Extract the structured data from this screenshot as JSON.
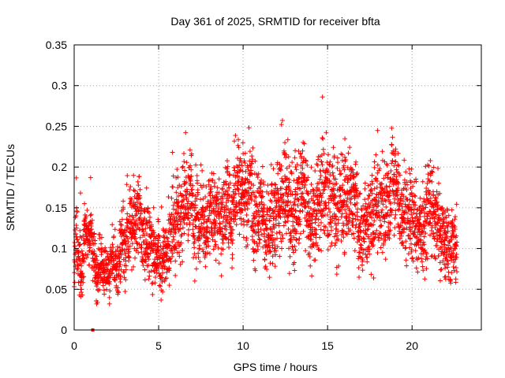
{
  "chart_data": {
    "type": "scatter",
    "title": "Day 361 of 2025, SRMTID for receiver bfta",
    "xlabel": "GPS time / hours",
    "ylabel": "SRMTID / TECUs",
    "xlim": [
      0,
      24.1
    ],
    "ylim": [
      0,
      0.35
    ],
    "x_ticks": [
      0,
      5,
      10,
      15,
      20
    ],
    "x_tick_labels": [
      "0",
      "5",
      "10",
      "15",
      "20"
    ],
    "y_ticks": [
      0,
      0.05,
      0.1,
      0.15,
      0.2,
      0.25,
      0.3,
      0.35
    ],
    "y_tick_labels": [
      "0",
      "0.05",
      "0.1",
      "0.15",
      "0.2",
      "0.25",
      "0.3",
      "0.35"
    ],
    "grid": true,
    "marker": "plus",
    "color": "#ff0000",
    "outlier_points": [
      {
        "x": 1.1,
        "y": 0.0
      }
    ],
    "envelope": {
      "x": [
        0.0,
        0.1,
        0.25,
        0.5,
        1.0,
        1.5,
        2.0,
        2.5,
        3.0,
        3.5,
        4.0,
        4.5,
        5.0,
        5.5,
        6.0,
        6.5,
        7.0,
        7.5,
        8.0,
        8.5,
        9.0,
        9.5,
        10.0,
        10.5,
        11.0,
        11.5,
        12.0,
        12.5,
        13.0,
        13.5,
        14.0,
        14.5,
        15.0,
        15.5,
        16.0,
        16.5,
        17.0,
        17.5,
        18.0,
        18.5,
        19.0,
        19.5,
        20.0,
        20.5,
        21.0,
        21.5,
        22.0,
        22.5
      ],
      "center": [
        0.09,
        0.13,
        0.12,
        0.1,
        0.085,
        0.075,
        0.07,
        0.08,
        0.105,
        0.12,
        0.115,
        0.1,
        0.09,
        0.1,
        0.11,
        0.155,
        0.14,
        0.12,
        0.13,
        0.12,
        0.14,
        0.14,
        0.15,
        0.155,
        0.14,
        0.12,
        0.14,
        0.175,
        0.17,
        0.15,
        0.15,
        0.15,
        0.155,
        0.16,
        0.165,
        0.165,
        0.12,
        0.13,
        0.16,
        0.17,
        0.17,
        0.16,
        0.14,
        0.12,
        0.15,
        0.13,
        0.12,
        0.095
      ],
      "spread": [
        0.03,
        0.05,
        0.04,
        0.035,
        0.03,
        0.03,
        0.025,
        0.03,
        0.04,
        0.04,
        0.04,
        0.035,
        0.03,
        0.035,
        0.04,
        0.05,
        0.05,
        0.045,
        0.04,
        0.045,
        0.05,
        0.05,
        0.045,
        0.05,
        0.045,
        0.04,
        0.05,
        0.06,
        0.06,
        0.055,
        0.05,
        0.05,
        0.055,
        0.055,
        0.055,
        0.05,
        0.04,
        0.045,
        0.05,
        0.05,
        0.05,
        0.05,
        0.045,
        0.04,
        0.055,
        0.045,
        0.04,
        0.03
      ],
      "sample_interval_hours": 0.0167,
      "end_hour": 22.65
    }
  }
}
